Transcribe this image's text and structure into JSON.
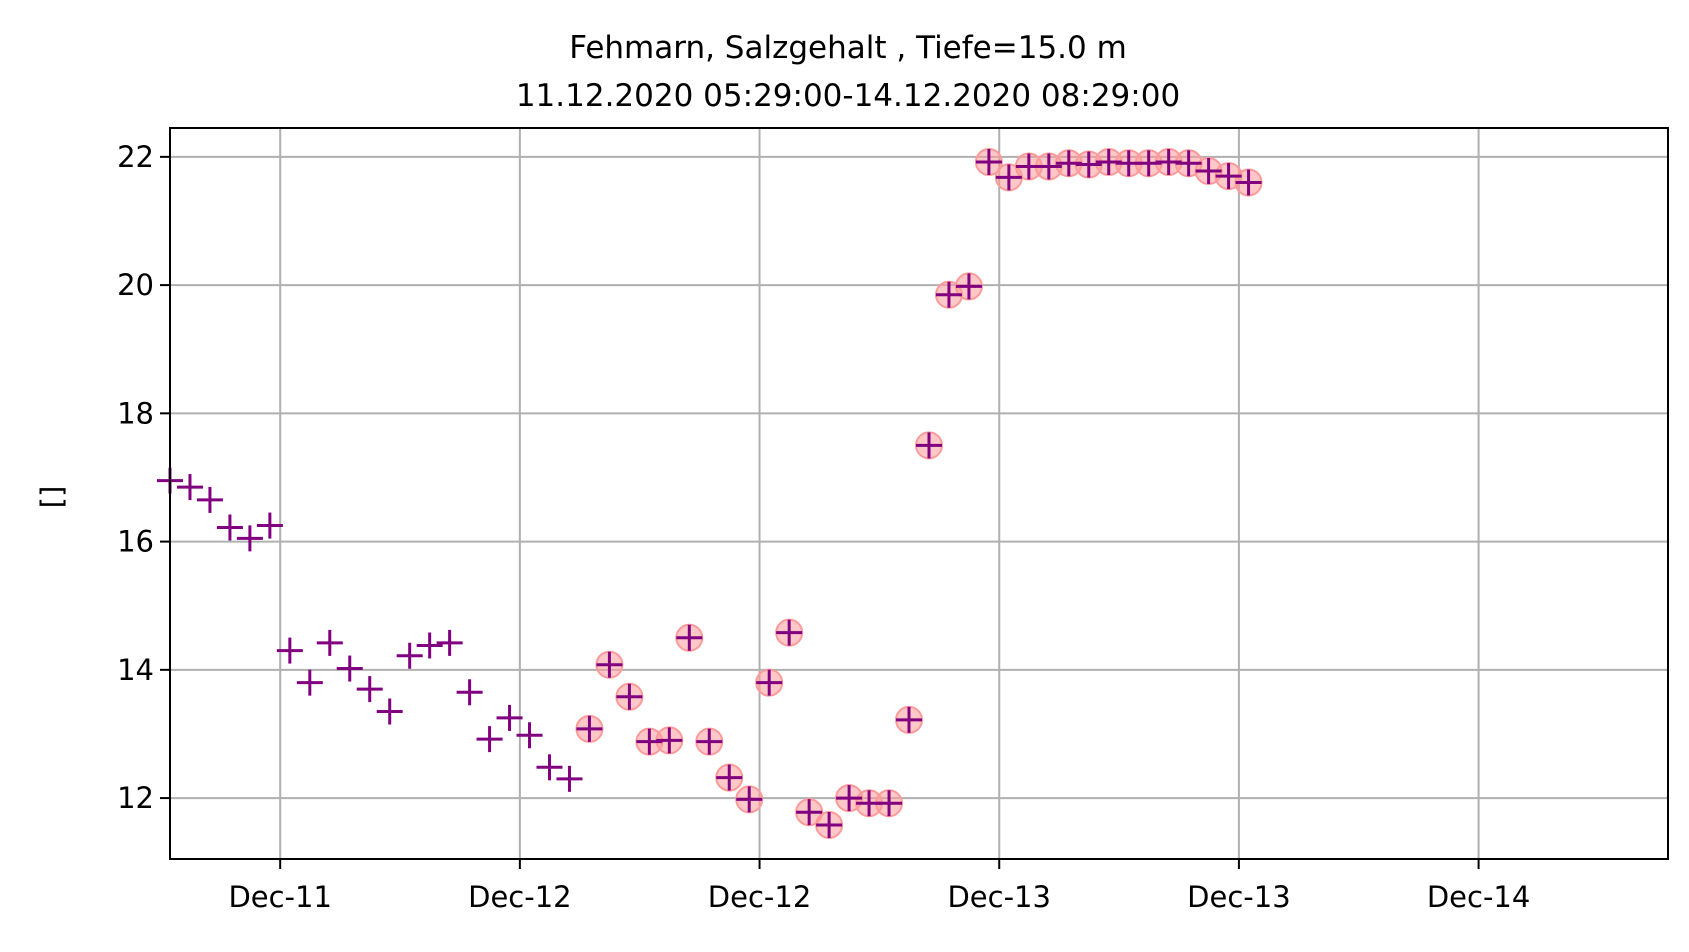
{
  "chart_data": {
    "type": "scatter",
    "title": "Fehmarn, Salzgehalt , Tiefe=15.0 m",
    "subtitle": "11.12.2020 05:29:00-14.12.2020 08:29:00",
    "xlabel": "",
    "ylabel": "[]",
    "xlim": [
      "2020-12-11 05:29",
      "2020-12-14 08:29"
    ],
    "ylim": [
      11.05,
      22.45
    ],
    "grid": true,
    "x_ticks": [
      {
        "label": "Dec-11",
        "pos": "2020-12-11 11:00"
      },
      {
        "label": "Dec-12",
        "pos": "2020-12-11 23:00"
      },
      {
        "label": "Dec-12",
        "pos": "2020-12-12 11:00"
      },
      {
        "label": "Dec-13",
        "pos": "2020-12-12 23:00"
      },
      {
        "label": "Dec-13",
        "pos": "2020-12-13 11:00"
      },
      {
        "label": "Dec-14",
        "pos": "2020-12-13 23:00"
      }
    ],
    "y_ticks": [
      12,
      14,
      16,
      18,
      20,
      22
    ],
    "marker_color": "#800080",
    "highlight_color": "#ff9a9a",
    "x": [
      "2020-12-11 05:29",
      "2020-12-11 06:29",
      "2020-12-11 07:29",
      "2020-12-11 08:29",
      "2020-12-11 09:29",
      "2020-12-11 10:29",
      "2020-12-11 11:29",
      "2020-12-11 12:29",
      "2020-12-11 13:29",
      "2020-12-11 14:29",
      "2020-12-11 15:29",
      "2020-12-11 16:29",
      "2020-12-11 17:29",
      "2020-12-11 18:29",
      "2020-12-11 19:29",
      "2020-12-11 20:29",
      "2020-12-11 21:29",
      "2020-12-11 22:29",
      "2020-12-11 23:29",
      "2020-12-12 00:29",
      "2020-12-12 01:29",
      "2020-12-12 02:29",
      "2020-12-12 03:29",
      "2020-12-12 04:29",
      "2020-12-12 05:29",
      "2020-12-12 06:29",
      "2020-12-12 07:29",
      "2020-12-12 08:29",
      "2020-12-12 09:29",
      "2020-12-12 10:29",
      "2020-12-12 11:29",
      "2020-12-12 12:29",
      "2020-12-12 13:29",
      "2020-12-12 14:29",
      "2020-12-12 15:29",
      "2020-12-12 16:29",
      "2020-12-12 17:29",
      "2020-12-12 18:29",
      "2020-12-12 19:29",
      "2020-12-12 20:29",
      "2020-12-12 21:29",
      "2020-12-12 22:29",
      "2020-12-12 23:29",
      "2020-12-13 00:29",
      "2020-12-13 01:29",
      "2020-12-13 02:29",
      "2020-12-13 03:29",
      "2020-12-13 04:29",
      "2020-12-13 05:29",
      "2020-12-13 06:29",
      "2020-12-13 07:29",
      "2020-12-13 08:29",
      "2020-12-13 09:29",
      "2020-12-13 10:29",
      "2020-12-13 11:29"
    ],
    "series": [
      {
        "values": [
          16.95,
          16.85,
          16.65,
          16.22,
          16.05,
          16.25,
          14.3,
          13.8,
          14.42,
          14.02,
          13.7,
          13.35,
          14.22,
          14.38,
          14.42,
          13.65,
          12.92,
          13.25,
          12.98,
          12.48,
          12.3,
          13.08,
          14.08,
          13.58,
          12.88,
          12.9,
          14.5,
          12.88,
          12.32,
          11.98,
          13.8,
          14.58,
          11.78,
          11.58,
          12.0,
          11.92,
          11.92,
          13.22,
          17.5,
          19.85,
          19.98,
          21.92,
          21.68,
          21.85,
          21.85,
          21.9,
          21.88,
          21.92,
          21.9,
          21.9,
          21.92,
          21.9,
          21.78,
          21.7,
          21.6
        ]
      }
    ],
    "highlight_start_index": 21
  }
}
